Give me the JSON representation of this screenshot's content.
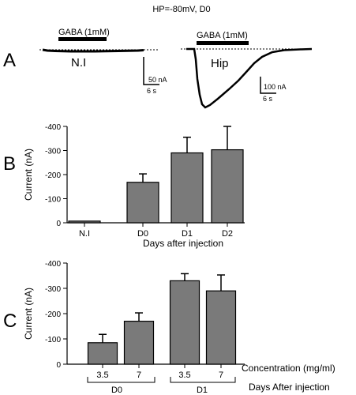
{
  "title": "HP=-80mV, D0",
  "panel_a": {
    "letter": "A",
    "trace_ni": {
      "stimulus_label": "GABA (1mM)",
      "name": "N.I",
      "scale_current": "50 nA",
      "scale_time": "6 s"
    },
    "trace_hip": {
      "stimulus_label": "GABA (1mM)",
      "name": "Hip",
      "scale_current": "100 nA",
      "scale_time": "6 s"
    }
  },
  "panel_b": {
    "letter": "B"
  },
  "panel_c": {
    "letter": "C",
    "concentration_label": "Concentration (mg/ml)",
    "days_label": "Days After injection",
    "groups": [
      "D0",
      "D1"
    ]
  },
  "colors": {
    "bar": "#7a7a7a",
    "axis": "#000000"
  },
  "chart_data": [
    {
      "type": "bar",
      "title": "",
      "xlabel": "Days after injection",
      "ylabel": "Current (nA)",
      "categories": [
        "N.I",
        "D0",
        "D1",
        "D2"
      ],
      "values": [
        -7,
        -168,
        -290,
        -303
      ],
      "errors": [
        0,
        35,
        65,
        97
      ],
      "ylim": [
        0,
        -400
      ],
      "yticks": [
        0,
        -100,
        -200,
        -300,
        -400
      ],
      "ytick_labels": [
        "0",
        "-100",
        "-200",
        "-300",
        "-400"
      ],
      "grid": false
    },
    {
      "type": "bar",
      "title": "",
      "xlabel": "Concentration (mg/ml)",
      "ylabel": "Current (nA)",
      "categories": [
        "3.5",
        "7",
        "3.5",
        "7"
      ],
      "groups": [
        "D0",
        "D0",
        "D1",
        "D1"
      ],
      "values": [
        -85,
        -170,
        -330,
        -290
      ],
      "errors": [
        33,
        33,
        28,
        63
      ],
      "ylim": [
        0,
        -400
      ],
      "yticks": [
        0,
        -100,
        -200,
        -300,
        -400
      ],
      "ytick_labels": [
        "0",
        "-100",
        "-200",
        "-300",
        "-400"
      ],
      "grid": false
    }
  ]
}
